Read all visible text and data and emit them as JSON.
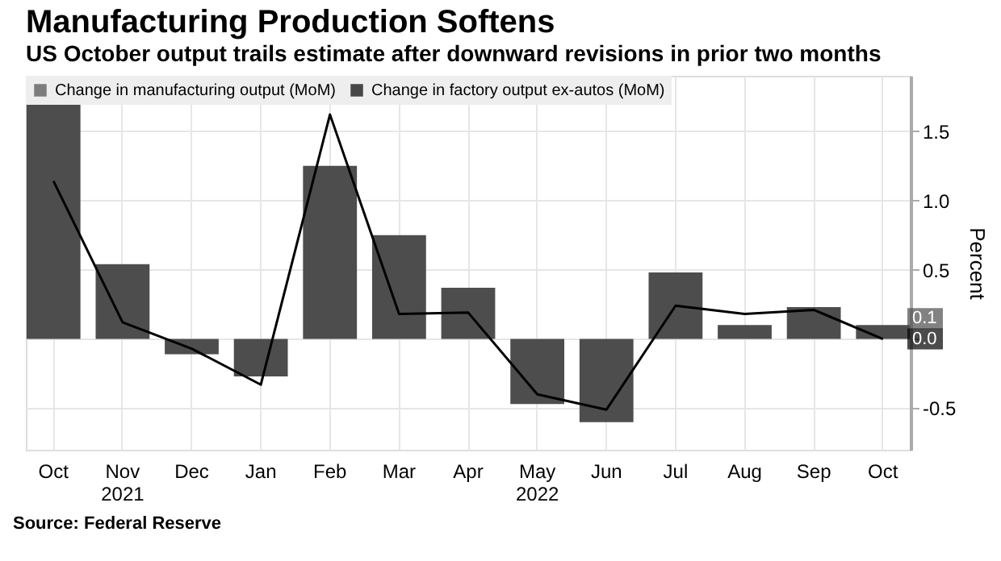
{
  "chart_data": {
    "type": "bar",
    "title": "Manufacturing Production Softens",
    "subtitle": "US October output trails estimate after downward revisions in prior two months",
    "ylabel": "Percent",
    "categories": [
      "Oct",
      "Nov 2021",
      "Dec",
      "Jan",
      "Feb",
      "Mar",
      "Apr",
      "May 2022",
      "Jun",
      "Jul",
      "Aug",
      "Sep",
      "Oct"
    ],
    "series": [
      {
        "name": "Change in manufacturing output (MoM)",
        "color": "#4d4d4d",
        "values": [
          1.69,
          0.54,
          -0.11,
          -0.27,
          1.25,
          0.75,
          0.37,
          -0.47,
          -0.6,
          0.48,
          0.1,
          0.23,
          0.1
        ],
        "value_labels": [
          null,
          null,
          null,
          null,
          null,
          null,
          null,
          null,
          null,
          null,
          null,
          null,
          "0.1"
        ]
      },
      {
        "name": "Change in factory output ex-autos (MoM)",
        "type": "line",
        "color": "#000000",
        "values": [
          1.14,
          0.12,
          -0.07,
          -0.33,
          1.62,
          0.18,
          0.19,
          -0.4,
          -0.51,
          0.24,
          0.18,
          0.21,
          0.0
        ],
        "value_labels": [
          null,
          null,
          null,
          null,
          null,
          null,
          null,
          null,
          null,
          null,
          null,
          null,
          "0.0"
        ]
      }
    ],
    "ylim": [
      -0.8,
      1.9
    ],
    "yticks": [
      -0.5,
      {
        "value": 0,
        "label": null
      },
      0.5,
      {
        "value": 1,
        "label": "1.0"
      },
      1.5
    ],
    "grid": true,
    "legend": "top left",
    "annotations": [
      "Source: Federal Reserve"
    ]
  }
}
